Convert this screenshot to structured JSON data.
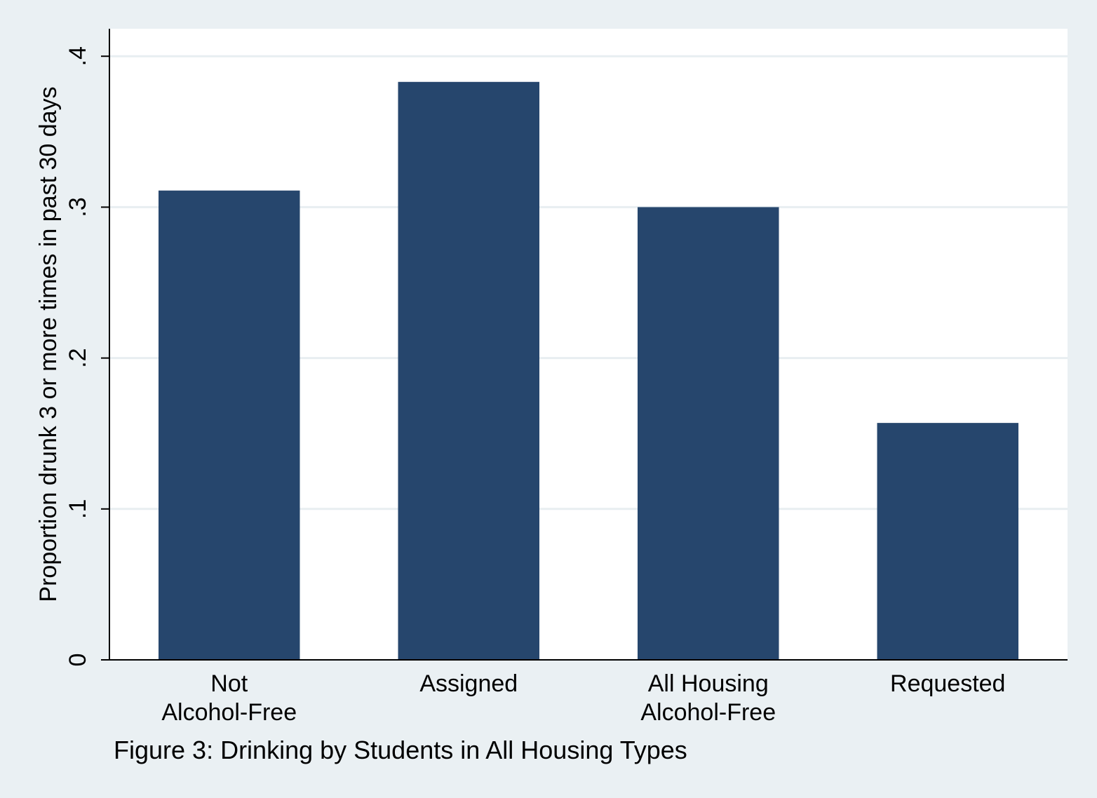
{
  "chart_data": {
    "type": "bar",
    "categories": [
      [
        "Not",
        "Alcohol-Free"
      ],
      [
        "Assigned"
      ],
      [
        "All Housing",
        "Alcohol-Free"
      ],
      [
        "Requested"
      ]
    ],
    "values": [
      0.311,
      0.383,
      0.3,
      0.157
    ],
    "title": "",
    "caption": "Figure 3: Drinking by Students in All Housing Types",
    "xlabel": "",
    "ylabel": "Proportion drunk 3 or more times in past 30 days",
    "ylim": [
      0,
      0.42
    ],
    "yticks": [
      0,
      0.1,
      0.2,
      0.3,
      0.4
    ],
    "ytick_labels": [
      "0",
      ".1",
      ".2",
      ".3",
      ".4"
    ],
    "grid": true,
    "colors": {
      "background": "#eaf0f3",
      "plot_background": "#ffffff",
      "bar": "#26466d",
      "grid": "#e8eef1",
      "axis": "#000000"
    }
  }
}
